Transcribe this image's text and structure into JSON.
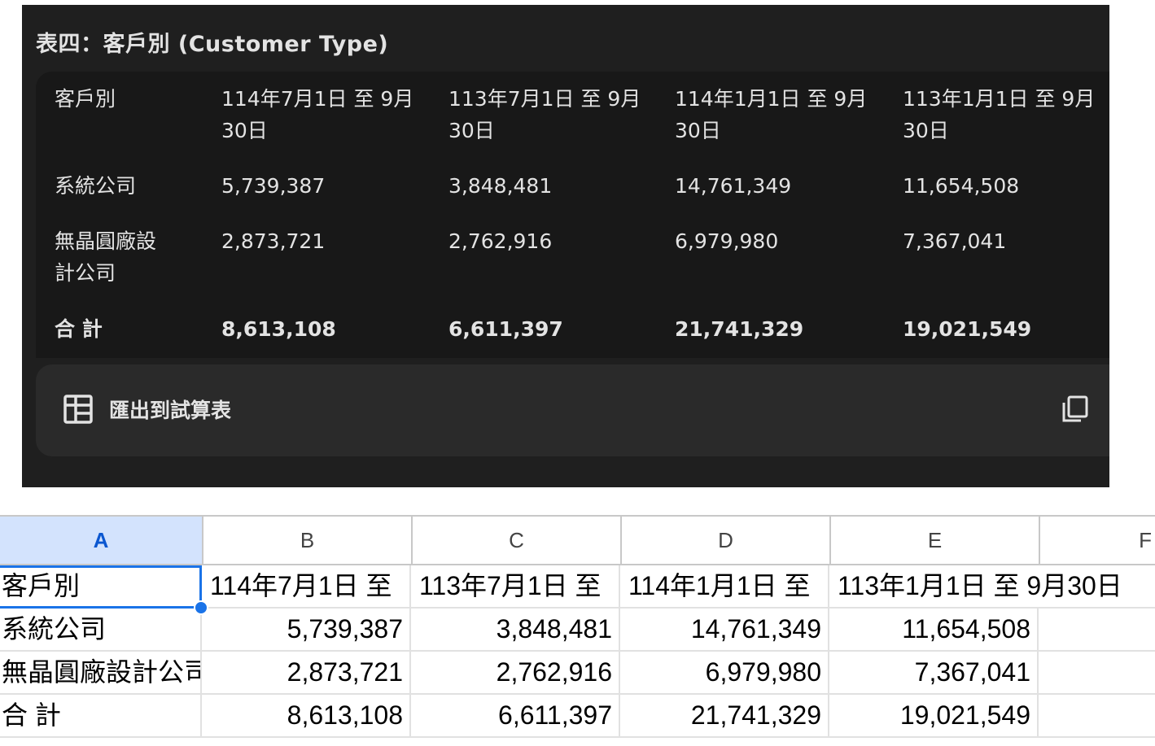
{
  "panel": {
    "title": "表四：客戶別 (Customer Type)",
    "table": {
      "headers": [
        [
          "客戶別"
        ],
        [
          "114年7月1日 至 9月",
          "30日"
        ],
        [
          "113年7月1日 至 9月",
          "30日"
        ],
        [
          "114年1月1日 至 9月",
          "30日"
        ],
        [
          "113年1月1日 至 9月",
          "30日"
        ]
      ],
      "rows": [
        {
          "label": [
            "系統公司"
          ],
          "values": [
            "5,739,387",
            "3,848,481",
            "14,761,349",
            "11,654,508"
          ],
          "bold": false
        },
        {
          "label": [
            "無晶圓廠設",
            "計公司"
          ],
          "values": [
            "2,873,721",
            "2,762,916",
            "6,979,980",
            "7,367,041"
          ],
          "bold": false
        },
        {
          "label": [
            "合 計"
          ],
          "values": [
            "8,613,108",
            "6,611,397",
            "21,741,329",
            "19,021,549"
          ],
          "bold": true
        }
      ]
    },
    "export_label": "匯出到試算表",
    "icons": {
      "export": "table-icon",
      "copy": "copy-icon"
    },
    "colors": {
      "panel_bg": "#1f1f1f",
      "card_bg": "#181818",
      "footer_bg": "#2a2a2a",
      "text": "#e3e3e3"
    }
  },
  "sheet": {
    "columns": [
      "A",
      "B",
      "C",
      "D",
      "E",
      "F"
    ],
    "selected_column": "A",
    "rows": [
      [
        "客戶別",
        "114年7月1日 至",
        "113年7月1日 至",
        "114年1月1日 至",
        "113年1月1日 至 9月30日",
        ""
      ],
      [
        "系統公司",
        "5,739,387",
        "3,848,481",
        "14,761,349",
        "11,654,508",
        ""
      ],
      [
        "無晶圓廠設計公司",
        "2,873,721",
        "2,762,916",
        "6,979,980",
        "7,367,041",
        ""
      ],
      [
        "合 計",
        "8,613,108",
        "6,611,397",
        "21,741,329",
        "19,021,549",
        ""
      ]
    ],
    "colors": {
      "selection": "#1a73e8",
      "header_selected_bg": "#d3e3fd",
      "grid": "#e1e1e1"
    }
  }
}
